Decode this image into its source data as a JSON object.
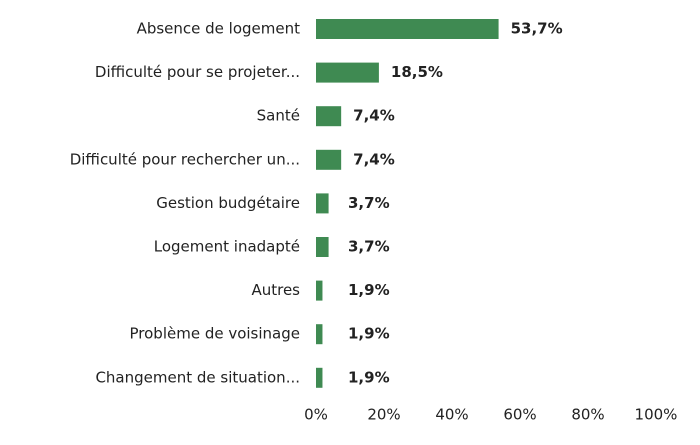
{
  "chart_data": {
    "type": "barh",
    "categories": [
      "Absence de logement",
      "Difficulté pour se projeter...",
      "Santé",
      "Difficulté pour rechercher un...",
      "Gestion budgétaire",
      "Logement inadapté",
      "Autres",
      "Problème de voisinage",
      "Changement de situation..."
    ],
    "values": [
      53.7,
      18.5,
      7.4,
      7.4,
      3.7,
      3.7,
      1.9,
      1.9,
      1.9
    ],
    "value_labels": [
      "53,7%",
      "18,5%",
      "7,4%",
      "7,4%",
      "3,7%",
      "3,7%",
      "1,9%",
      "1,9%",
      "1,9%"
    ],
    "color": "#3f8a52",
    "xlim": [
      0,
      100
    ],
    "xticks": [
      {
        "value": 0,
        "label": "0%"
      },
      {
        "value": 20,
        "label": "20%"
      },
      {
        "value": 40,
        "label": "40%"
      },
      {
        "value": 60,
        "label": "60%"
      },
      {
        "value": 80,
        "label": "80%"
      },
      {
        "value": 100,
        "label": "100%"
      }
    ],
    "grid": false
  }
}
